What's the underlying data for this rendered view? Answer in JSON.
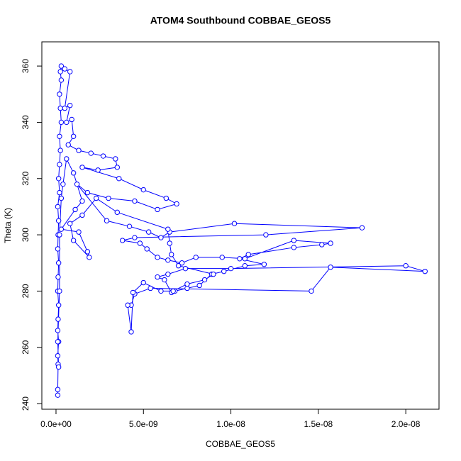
{
  "chart_data": {
    "type": "line",
    "markers": true,
    "title": "ATOM4 Southbound COBBAE_GEOS5",
    "xlabel": "COBBAE_GEOS5",
    "ylabel": "Theta (K)",
    "color": "#0000ff",
    "xlim": [
      -8.1e-10,
      2.19e-08
    ],
    "ylim": [
      238,
      368.6
    ],
    "xticks": [
      {
        "value": 0,
        "label": "0.0e+00"
      },
      {
        "value": 5e-09,
        "label": "5.0e-09"
      },
      {
        "value": 1e-08,
        "label": "1.0e-08"
      },
      {
        "value": 1.5e-08,
        "label": "1.5e-08"
      },
      {
        "value": 2e-08,
        "label": "2.0e-08"
      }
    ],
    "yticks": [
      240,
      260,
      280,
      300,
      320,
      340,
      360
    ],
    "x": [
      1e-10,
      1e-10,
      1.2e-10,
      1e-10,
      1.5e-10,
      1e-10,
      1.2e-10,
      1.5e-10,
      1e-10,
      1.2e-10,
      1.5e-10,
      1e-10,
      1.2e-10,
      1.5e-10,
      1e-10,
      2e-10,
      1.5e-10,
      2e-10,
      2.5e-10,
      2e-10,
      3e-10,
      2.5e-10,
      2e-10,
      3e-10,
      2.5e-10,
      3e-10,
      5e-10,
      8e-10,
      5e-10,
      8e-10,
      6e-10,
      9e-10,
      1e-09,
      7e-10,
      1.3e-09,
      2e-09,
      2.7e-09,
      3.4e-09,
      3.5e-09,
      2.4e-09,
      1.5e-09,
      3.6e-09,
      5e-09,
      6.3e-09,
      6.9e-09,
      5.8e-09,
      4.5e-09,
      3e-09,
      1.8e-09,
      1.2e-09,
      2.9e-09,
      4.2e-09,
      5.3e-09,
      6e-09,
      6.5e-09,
      1.02e-08,
      1.75e-08,
      1.2e-08,
      4.5e-09,
      3.8e-09,
      4.8e-09,
      5.2e-09,
      5.8e-09,
      6.4e-09,
      7.2e-09,
      8e-09,
      9.5e-09,
      1.08e-08,
      1.36e-08,
      1.57e-08,
      1.52e-08,
      1.36e-08,
      1.1e-08,
      1.05e-08,
      1.19e-08,
      1.08e-08,
      9.6e-09,
      8.9e-09,
      8.2e-09,
      7.5e-09,
      6.8e-09,
      6.6e-09,
      6.2e-09,
      5.8e-09,
      6.4e-09,
      7.4e-09,
      1e-08,
      2e-08,
      2.11e-08,
      1.57e-08,
      1.46e-08,
      5.4e-09,
      4.5e-09,
      4.3e-09,
      4.1e-09,
      4.3e-09,
      4.4e-09,
      5e-09,
      6e-09,
      6.7e-09,
      7.5e-09,
      8.5e-09,
      9e-09,
      7e-09,
      6.6e-09,
      6.5e-09,
      6.4e-09,
      3.5e-09,
      2.3e-09,
      1.5e-09,
      8e-10,
      1e-09,
      1.9e-09,
      1.8e-09,
      1.3e-09,
      3e-10,
      1.1e-09,
      1.5e-09,
      1e-09,
      6e-10,
      4e-10,
      3e-10,
      2e-10,
      2e-10,
      1e-10,
      1.5e-10
    ],
    "values": [
      243,
      245,
      254,
      257,
      262,
      266,
      270,
      275,
      280,
      285,
      290,
      295,
      300,
      305,
      310,
      315,
      320,
      325,
      330,
      335,
      340,
      345,
      350,
      355,
      358,
      360,
      359,
      358,
      345,
      346,
      340,
      341,
      335,
      332,
      330,
      329,
      328,
      327,
      324,
      323,
      324,
      320,
      316,
      313,
      311,
      309,
      312,
      313,
      315,
      318,
      305,
      303,
      301,
      299,
      301,
      304,
      302.5,
      300,
      299,
      298,
      297,
      295,
      292,
      291,
      290,
      292,
      292,
      291.5,
      298,
      297,
      296.5,
      295.5,
      293,
      291.5,
      289.5,
      289,
      287,
      286,
      282,
      281,
      280,
      279.5,
      284,
      285,
      286,
      288,
      288,
      289,
      287,
      288.5,
      280,
      281,
      279,
      275,
      275,
      265.5,
      279.5,
      283,
      280,
      280,
      282.5,
      284,
      286,
      289,
      293,
      297,
      302,
      308,
      313,
      307,
      304,
      298,
      292,
      294,
      301,
      302,
      309,
      312,
      322,
      327,
      318,
      313,
      300,
      280,
      262,
      253
    ]
  }
}
